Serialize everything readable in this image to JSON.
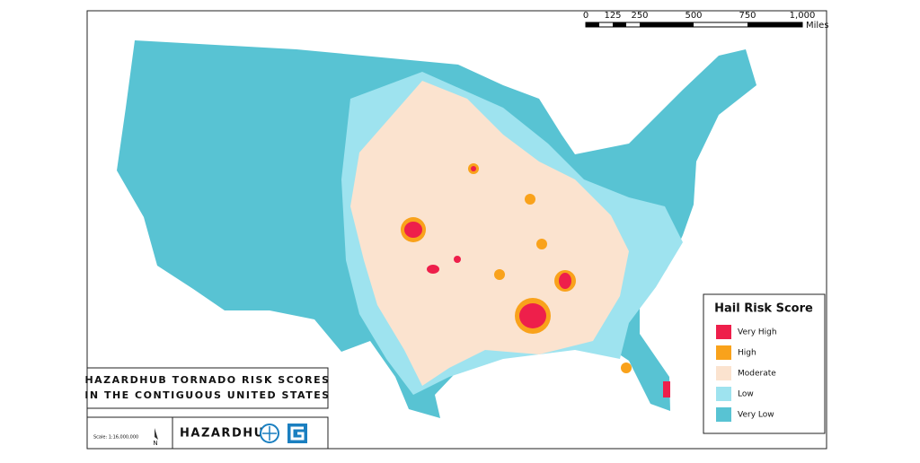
{
  "scale_bar": {
    "labels": [
      "0",
      "125",
      "250",
      "500",
      "750",
      "1,000"
    ],
    "unit": "Miles"
  },
  "legend": {
    "title": "Hail Risk Score",
    "items": [
      {
        "label": "Very High",
        "color": "#ee1f4b"
      },
      {
        "label": "High",
        "color": "#f9a21b"
      },
      {
        "label": "Moderate",
        "color": "#fbe3cf"
      },
      {
        "label": "Low",
        "color": "#9ee3ef"
      },
      {
        "label": "Very Low",
        "color": "#58c3d3"
      }
    ]
  },
  "title": [
    "HAZARDHUB TORNADO RISK SCORES",
    "IN THE CONTIGUOUS UNITED STATES"
  ],
  "footer": {
    "scale": "Scale: 1:16,000,000",
    "north": "N",
    "brand": "HAZARDHUB"
  }
}
